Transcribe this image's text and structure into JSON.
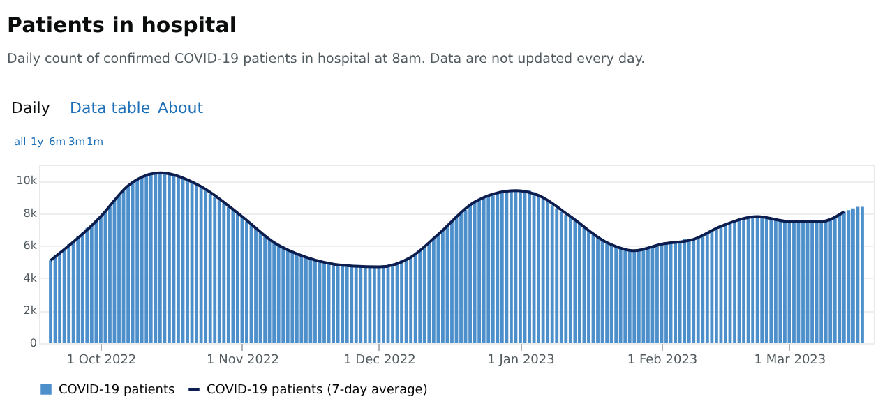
{
  "chart_data": {
    "type": "bar",
    "title": "Patients in hospital",
    "subtitle": "Daily count of confirmed COVID-19 patients in hospital at 8am. Data are not updated every day.",
    "annotations": [
      "Daily",
      "Data table",
      "About",
      "all",
      "1y",
      "6m",
      "3m",
      "1m"
    ],
    "x": [
      "2022-09-20",
      "2022-09-21",
      "2022-09-22",
      "2022-09-23",
      "2022-09-24",
      "2022-09-25",
      "2022-09-26",
      "2022-09-27",
      "2022-09-28",
      "2022-09-29",
      "2022-09-30",
      "2022-10-01",
      "2022-10-02",
      "2022-10-03",
      "2022-10-04",
      "2022-10-05",
      "2022-10-06",
      "2022-10-07",
      "2022-10-08",
      "2022-10-09",
      "2022-10-10",
      "2022-10-11",
      "2022-10-12",
      "2022-10-13",
      "2022-10-14",
      "2022-10-15",
      "2022-10-16",
      "2022-10-17",
      "2022-10-18",
      "2022-10-19",
      "2022-10-20",
      "2022-10-21",
      "2022-10-22",
      "2022-10-23",
      "2022-10-24",
      "2022-10-25",
      "2022-10-26",
      "2022-10-27",
      "2022-10-28",
      "2022-10-29",
      "2022-10-30",
      "2022-10-31",
      "2022-11-01",
      "2022-11-02",
      "2022-11-03",
      "2022-11-04",
      "2022-11-05",
      "2022-11-06",
      "2022-11-07",
      "2022-11-08",
      "2022-11-09",
      "2022-11-10",
      "2022-11-11",
      "2022-11-12",
      "2022-11-13",
      "2022-11-14",
      "2022-11-15",
      "2022-11-16",
      "2022-11-17",
      "2022-11-18",
      "2022-11-19",
      "2022-11-20",
      "2022-11-21",
      "2022-11-22",
      "2022-11-23",
      "2022-11-24",
      "2022-11-25",
      "2022-11-26",
      "2022-11-27",
      "2022-11-28",
      "2022-11-29",
      "2022-11-30",
      "2022-12-01",
      "2022-12-02",
      "2022-12-03",
      "2022-12-04",
      "2022-12-05",
      "2022-12-06",
      "2022-12-07",
      "2022-12-08",
      "2022-12-09",
      "2022-12-10",
      "2022-12-11",
      "2022-12-12",
      "2022-12-13",
      "2022-12-14",
      "2022-12-15",
      "2022-12-16",
      "2022-12-17",
      "2022-12-18",
      "2022-12-19",
      "2022-12-20",
      "2022-12-21",
      "2022-12-22",
      "2022-12-23",
      "2022-12-24",
      "2022-12-25",
      "2022-12-26",
      "2022-12-27",
      "2022-12-28",
      "2022-12-29",
      "2022-12-30",
      "2022-12-31",
      "2023-01-01",
      "2023-01-02",
      "2023-01-03",
      "2023-01-04",
      "2023-01-05",
      "2023-01-06",
      "2023-01-07",
      "2023-01-08",
      "2023-01-09",
      "2023-01-10",
      "2023-01-11",
      "2023-01-12",
      "2023-01-13",
      "2023-01-14",
      "2023-01-15",
      "2023-01-16",
      "2023-01-17",
      "2023-01-18",
      "2023-01-19",
      "2023-01-20",
      "2023-01-21",
      "2023-01-22",
      "2023-01-23",
      "2023-01-24",
      "2023-01-25",
      "2023-01-26",
      "2023-01-27",
      "2023-01-28",
      "2023-01-29",
      "2023-01-30",
      "2023-01-31",
      "2023-02-01",
      "2023-02-02",
      "2023-02-03",
      "2023-02-04",
      "2023-02-05",
      "2023-02-06",
      "2023-02-07",
      "2023-02-08",
      "2023-02-09",
      "2023-02-10",
      "2023-02-11",
      "2023-02-12",
      "2023-02-13",
      "2023-02-14",
      "2023-02-15",
      "2023-02-16",
      "2023-02-17",
      "2023-02-18",
      "2023-02-19",
      "2023-02-20",
      "2023-02-21",
      "2023-02-22",
      "2023-02-23",
      "2023-02-24",
      "2023-02-25",
      "2023-02-26",
      "2023-02-27",
      "2023-02-28",
      "2023-03-01",
      "2023-03-02",
      "2023-03-03",
      "2023-03-04",
      "2023-03-05",
      "2023-03-06",
      "2023-03-07",
      "2023-03-08",
      "2023-03-09",
      "2023-03-10",
      "2023-03-11",
      "2023-03-12",
      "2023-03-13",
      "2023-03-14",
      "2023-03-15",
      "2023-03-16",
      "2023-03-17"
    ],
    "series": [
      {
        "name": "COVID-19 patients",
        "color": "#4d8fcb",
        "values": [
          5100,
          5400,
          5600,
          5800,
          6100,
          6300,
          6600,
          6800,
          7100,
          7300,
          7600,
          7800,
          8100,
          8400,
          8800,
          9100,
          9400,
          9700,
          9900,
          10100,
          10200,
          10300,
          10400,
          10500,
          10500,
          10500,
          10500,
          10400,
          10300,
          10200,
          10100,
          10000,
          9800,
          9600,
          9400,
          9200,
          9000,
          8800,
          8600,
          8400,
          8200,
          8000,
          7800,
          7500,
          7300,
          7100,
          6800,
          6600,
          6400,
          6200,
          6000,
          5900,
          5800,
          5600,
          5500,
          5400,
          5300,
          5200,
          5100,
          5000,
          4900,
          4900,
          4800,
          4800,
          4800,
          4700,
          4700,
          4700,
          4700,
          4700,
          4700,
          4700,
          4700,
          4800,
          4800,
          4900,
          5000,
          5100,
          5200,
          5300,
          5500,
          5700,
          5900,
          6200,
          6400,
          6700,
          7000,
          7200,
          7500,
          7700,
          8000,
          8200,
          8500,
          8700,
          8800,
          8900,
          9000,
          9100,
          9200,
          9300,
          9300,
          9400,
          9400,
          9400,
          9400,
          9400,
          9300,
          9100,
          8900,
          8700,
          8500,
          8300,
          8100,
          7900,
          7800,
          7600,
          7400,
          7200,
          7000,
          6800,
          6600,
          6400,
          6200,
          6100,
          6000,
          5900,
          5800,
          5800,
          5700,
          5700,
          5800,
          5900,
          6000,
          6000,
          6100,
          6200,
          6200,
          6300,
          6300,
          6400,
          6400,
          6400,
          6500,
          6600,
          6700,
          6900,
          7000,
          7200,
          7300,
          7400,
          7500,
          7600,
          7700,
          7800,
          7800,
          7800,
          7800,
          7800,
          7700,
          7600,
          7600,
          7500,
          7500,
          7500,
          7500,
          7500,
          7500,
          7500,
          7500,
          7500,
          7600,
          7700,
          7800,
          8000,
          8100,
          8200,
          8300,
          8400,
          8400
        ]
      },
      {
        "name": "COVID-19 patients (7-day average)",
        "type": "line",
        "color": "#0b1e4f",
        "x": [
          "2022-09-20",
          "2022-10-01",
          "2022-10-07",
          "2022-10-14",
          "2022-10-22",
          "2022-11-01",
          "2022-11-08",
          "2022-11-15",
          "2022-11-23",
          "2022-12-01",
          "2022-12-08",
          "2022-12-14",
          "2022-12-22",
          "2022-12-31",
          "2023-01-05",
          "2023-01-12",
          "2023-01-20",
          "2023-01-26",
          "2023-02-01",
          "2023-02-08",
          "2023-02-14",
          "2023-02-22",
          "2023-03-01",
          "2023-03-08",
          "2023-03-13"
        ],
        "values": [
          5100,
          7800,
          9700,
          10500,
          9800,
          7800,
          6200,
          5300,
          4800,
          4700,
          5300,
          6700,
          8700,
          9400,
          9100,
          7800,
          6200,
          5700,
          6100,
          6400,
          7200,
          7800,
          7500,
          7500,
          8100
        ]
      }
    ],
    "xlim": [
      "2022-09-19",
      "2023-03-18"
    ],
    "xticks": [
      {
        "value": "2022-10-01",
        "label": "1 Oct 2022"
      },
      {
        "value": "2022-11-01",
        "label": "1 Nov 2022"
      },
      {
        "value": "2022-12-01",
        "label": "1 Dec 2022"
      },
      {
        "value": "2023-01-01",
        "label": "1 Jan 2023"
      },
      {
        "value": "2023-02-01",
        "label": "1 Feb 2023"
      },
      {
        "value": "2023-03-01",
        "label": "1 Mar 2023"
      }
    ],
    "ylim": [
      0,
      11000
    ],
    "yticks": [
      {
        "value": 0,
        "label": "0"
      },
      {
        "value": 2000,
        "label": "2k"
      },
      {
        "value": 4000,
        "label": "4k"
      },
      {
        "value": 6000,
        "label": "6k"
      },
      {
        "value": 8000,
        "label": "8k"
      },
      {
        "value": 10000,
        "label": "10k"
      }
    ],
    "grid": "y",
    "legend": "bottom"
  }
}
